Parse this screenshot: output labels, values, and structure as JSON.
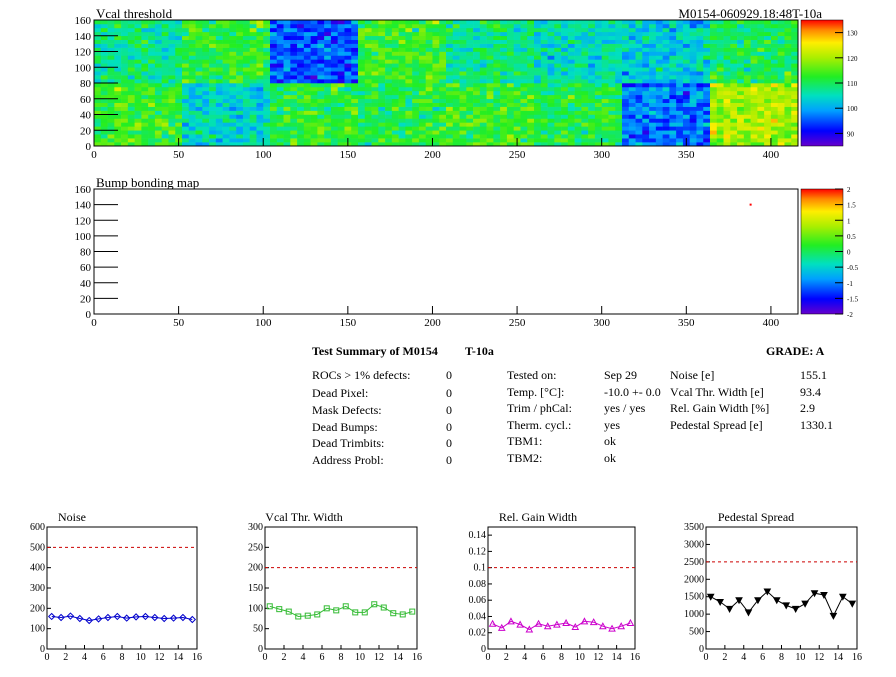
{
  "top_map": {
    "title": "Vcal threshold",
    "id_label": "M0154-060929.18:48T-10a",
    "y_ticks": [
      "0",
      "20",
      "40",
      "60",
      "80",
      "100",
      "120",
      "140",
      "160"
    ],
    "x_ticks": [
      "0",
      "50",
      "100",
      "150",
      "200",
      "250",
      "300",
      "350",
      "400"
    ],
    "scale_ticks": [
      "130",
      "120",
      "110",
      "100",
      "90"
    ]
  },
  "bump_map": {
    "title": "Bump bonding map",
    "y_ticks": [
      "0",
      "20",
      "40",
      "60",
      "80",
      "100",
      "120",
      "140",
      "160"
    ],
    "x_ticks": [
      "0",
      "50",
      "100",
      "150",
      "200",
      "250",
      "300",
      "350",
      "400"
    ],
    "scale_ticks": [
      "2",
      "1.5",
      "1",
      "0.5",
      "0",
      "-0.5",
      "-1",
      "-1.5",
      "-2"
    ]
  },
  "summary": {
    "heading": "Test Summary of M0154",
    "temp_tag": "T-10a",
    "grade": "GRADE:  A",
    "defects": [
      {
        "label": "ROCs > 1% defects:",
        "value": "0"
      },
      {
        "label": "Dead Pixel:",
        "value": "0"
      },
      {
        "label": "Mask Defects:",
        "value": "0"
      },
      {
        "label": "Dead Bumps:",
        "value": "0"
      },
      {
        "label": "Dead Trimbits:",
        "value": "0"
      },
      {
        "label": "Address Probl:",
        "value": "0"
      }
    ],
    "conditions": [
      {
        "label": "Tested on:",
        "value": "Sep 29"
      },
      {
        "label": "Temp. [°C]:",
        "value": "-10.0 +- 0.0"
      },
      {
        "label": "Trim / phCal:",
        "value": "yes / yes"
      },
      {
        "label": "Therm. cycl.:",
        "value": "yes"
      },
      {
        "label": "TBM1:",
        "value": "ok"
      },
      {
        "label": "TBM2:",
        "value": "ok"
      }
    ],
    "metrics": [
      {
        "label": "Noise [e]",
        "value": "155.1"
      },
      {
        "label": "Vcal Thr. Width [e]",
        "value": "93.4"
      },
      {
        "label": "Rel. Gain Width [%]",
        "value": "2.9"
      },
      {
        "label": "Pedestal Spread [e]",
        "value": "1330.1"
      }
    ]
  },
  "chart_data": [
    {
      "type": "heatmap",
      "title": "Vcal threshold",
      "xlim": [
        0,
        416
      ],
      "ylim": [
        0,
        160
      ],
      "x_ticks": [
        0,
        50,
        100,
        150,
        200,
        250,
        300,
        350,
        400
      ],
      "y_ticks": [
        0,
        20,
        40,
        60,
        80,
        100,
        120,
        140,
        160
      ],
      "zlim": [
        85,
        135
      ],
      "z_ticks": [
        90,
        100,
        110,
        120,
        130
      ],
      "roc_columns": 52,
      "roc_rows": 80,
      "roc_means_bottom": [
        113,
        104,
        112,
        111,
        113,
        111,
        97,
        120
      ],
      "roc_means_top": [
        108,
        112,
        95,
        113,
        108,
        105,
        103,
        110
      ]
    },
    {
      "type": "heatmap",
      "title": "Bump bonding map",
      "xlim": [
        0,
        416
      ],
      "ylim": [
        0,
        160
      ],
      "x_ticks": [
        0,
        50,
        100,
        150,
        200,
        250,
        300,
        350,
        400
      ],
      "y_ticks": [
        0,
        20,
        40,
        60,
        80,
        100,
        120,
        140,
        160
      ],
      "zlim": [
        -2,
        2
      ],
      "z_ticks": [
        2,
        1.5,
        1,
        0.5,
        0,
        -0.5,
        -1,
        -1.5,
        -2
      ],
      "points": [
        {
          "x": 388,
          "y": 140,
          "z": 2
        }
      ]
    },
    {
      "type": "line",
      "title": "Noise",
      "xlim": [
        0,
        16
      ],
      "ylim": [
        0,
        600
      ],
      "x_ticks": [
        0,
        2,
        4,
        6,
        8,
        10,
        12,
        14,
        16
      ],
      "y_ticks": [
        0,
        100,
        200,
        300,
        400,
        500,
        600
      ],
      "threshold": 500,
      "x": [
        0,
        1,
        2,
        3,
        4,
        5,
        6,
        7,
        8,
        9,
        10,
        11,
        12,
        13,
        14,
        15
      ],
      "values": [
        160,
        155,
        162,
        150,
        140,
        148,
        155,
        160,
        152,
        158,
        160,
        155,
        150,
        152,
        155,
        145
      ]
    },
    {
      "type": "line",
      "title": "Vcal Thr. Width",
      "xlim": [
        0,
        16
      ],
      "ylim": [
        0,
        300
      ],
      "x_ticks": [
        0,
        2,
        4,
        6,
        8,
        10,
        12,
        14,
        16
      ],
      "y_ticks": [
        0,
        50,
        100,
        150,
        200,
        250,
        300
      ],
      "threshold": 200,
      "x": [
        0,
        1,
        2,
        3,
        4,
        5,
        6,
        7,
        8,
        9,
        10,
        11,
        12,
        13,
        14,
        15
      ],
      "values": [
        105,
        98,
        92,
        80,
        82,
        85,
        100,
        95,
        105,
        90,
        90,
        110,
        102,
        88,
        85,
        92
      ]
    },
    {
      "type": "line",
      "title": "Rel. Gain Width",
      "xlim": [
        0,
        16
      ],
      "ylim": [
        0,
        0.15
      ],
      "x_ticks": [
        0,
        2,
        4,
        6,
        8,
        10,
        12,
        14,
        16
      ],
      "y_ticks": [
        0,
        0.02,
        0.04,
        0.06,
        0.08,
        0.1,
        0.12,
        0.14
      ],
      "threshold": 0.1,
      "x": [
        0,
        1,
        2,
        3,
        4,
        5,
        6,
        7,
        8,
        9,
        10,
        11,
        12,
        13,
        14,
        15
      ],
      "values": [
        0.031,
        0.026,
        0.034,
        0.03,
        0.024,
        0.031,
        0.028,
        0.03,
        0.032,
        0.027,
        0.034,
        0.033,
        0.028,
        0.025,
        0.028,
        0.032
      ]
    },
    {
      "type": "line",
      "title": "Pedestal Spread",
      "xlim": [
        0,
        16
      ],
      "ylim": [
        0,
        3500
      ],
      "x_ticks": [
        0,
        2,
        4,
        6,
        8,
        10,
        12,
        14,
        16
      ],
      "y_ticks": [
        0,
        500,
        1000,
        1500,
        2000,
        2500,
        3000,
        3500
      ],
      "threshold": 2500,
      "x": [
        0,
        1,
        2,
        3,
        4,
        5,
        6,
        7,
        8,
        9,
        10,
        11,
        12,
        13,
        14,
        15
      ],
      "values": [
        1500,
        1350,
        1150,
        1400,
        1050,
        1400,
        1650,
        1400,
        1250,
        1150,
        1300,
        1600,
        1550,
        950,
        1500,
        1300
      ]
    }
  ],
  "colors": {
    "noise": "#0000cc",
    "vcal_width": "#33bb33",
    "gain_width": "#cc00cc",
    "pedestal": "#000000",
    "threshold_line": "#cc0000"
  }
}
